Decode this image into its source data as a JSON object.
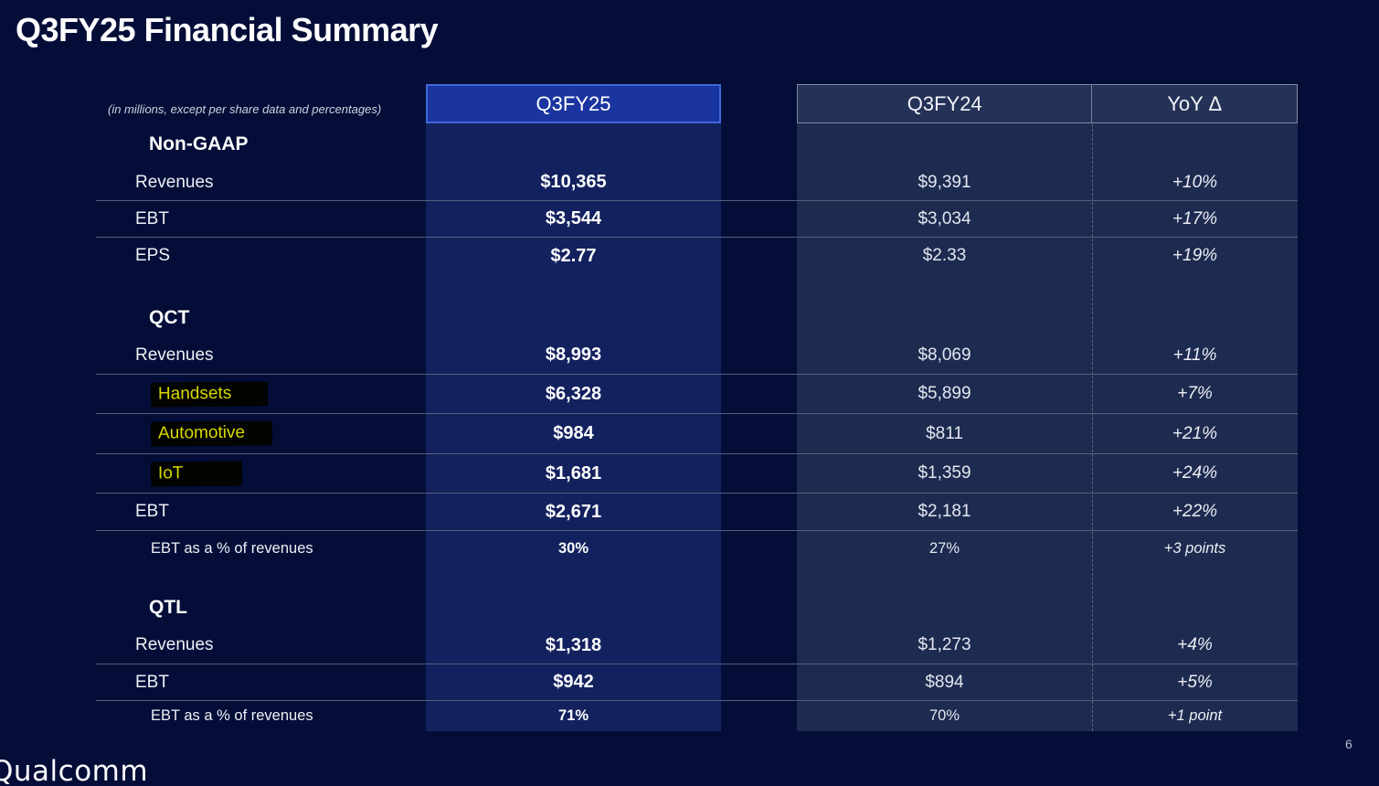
{
  "page": {
    "title": "Q3FY25 Financial Summary",
    "note": "(in millions, except per share data and percentages)",
    "page_number": "6",
    "logo_text": "Qualcomm"
  },
  "colors": {
    "background": "#030d38",
    "current_header_fill": "#1b35a0",
    "current_header_border": "#3f68d6",
    "current_column_fill": "#13215f",
    "comparison_column_fill": "#1e2b50",
    "comparison_header_fill": "#243258",
    "row_divider": "#55607a",
    "highlight_text": "#d9d900",
    "highlight_marker": "#030300"
  },
  "table": {
    "columns": {
      "current": "Q3FY25",
      "prior": "Q3FY24",
      "delta": "YoY Δ"
    },
    "sections": [
      {
        "name": "Non-GAAP",
        "rows": [
          {
            "label": "Revenues",
            "q3fy25": "$10,365",
            "q3fy24": "$9,391",
            "yoy": "+10%"
          },
          {
            "label": "EBT",
            "q3fy25": "$3,544",
            "q3fy24": "$3,034",
            "yoy": "+17%"
          },
          {
            "label": "EPS",
            "q3fy25": "$2.77",
            "q3fy24": "$2.33",
            "yoy": "+19%"
          }
        ]
      },
      {
        "name": "QCT",
        "rows": [
          {
            "label": "Revenues",
            "q3fy25": "$8,993",
            "q3fy24": "$8,069",
            "yoy": "+11%"
          },
          {
            "label": "Handsets",
            "highlighted": true,
            "q3fy25": "$6,328",
            "q3fy24": "$5,899",
            "yoy": "+7%"
          },
          {
            "label": "Automotive",
            "highlighted": true,
            "q3fy25": "$984",
            "q3fy24": "$811",
            "yoy": "+21%"
          },
          {
            "label": "IoT",
            "highlighted": true,
            "q3fy25": "$1,681",
            "q3fy24": "$1,359",
            "yoy": "+24%"
          },
          {
            "label": "EBT",
            "q3fy25": "$2,671",
            "q3fy24": "$2,181",
            "yoy": "+22%"
          },
          {
            "label": "EBT as a % of revenues",
            "q3fy25": "30%",
            "q3fy24": "27%",
            "yoy": "+3 points"
          }
        ]
      },
      {
        "name": "QTL",
        "rows": [
          {
            "label": "Revenues",
            "q3fy25": "$1,318",
            "q3fy24": "$1,273",
            "yoy": "+4%"
          },
          {
            "label": "EBT",
            "q3fy25": "$942",
            "q3fy24": "$894",
            "yoy": "+5%"
          },
          {
            "label": "EBT as a % of revenues",
            "q3fy25": "71%",
            "q3fy24": "70%",
            "yoy": "+1 point"
          }
        ]
      }
    ]
  }
}
